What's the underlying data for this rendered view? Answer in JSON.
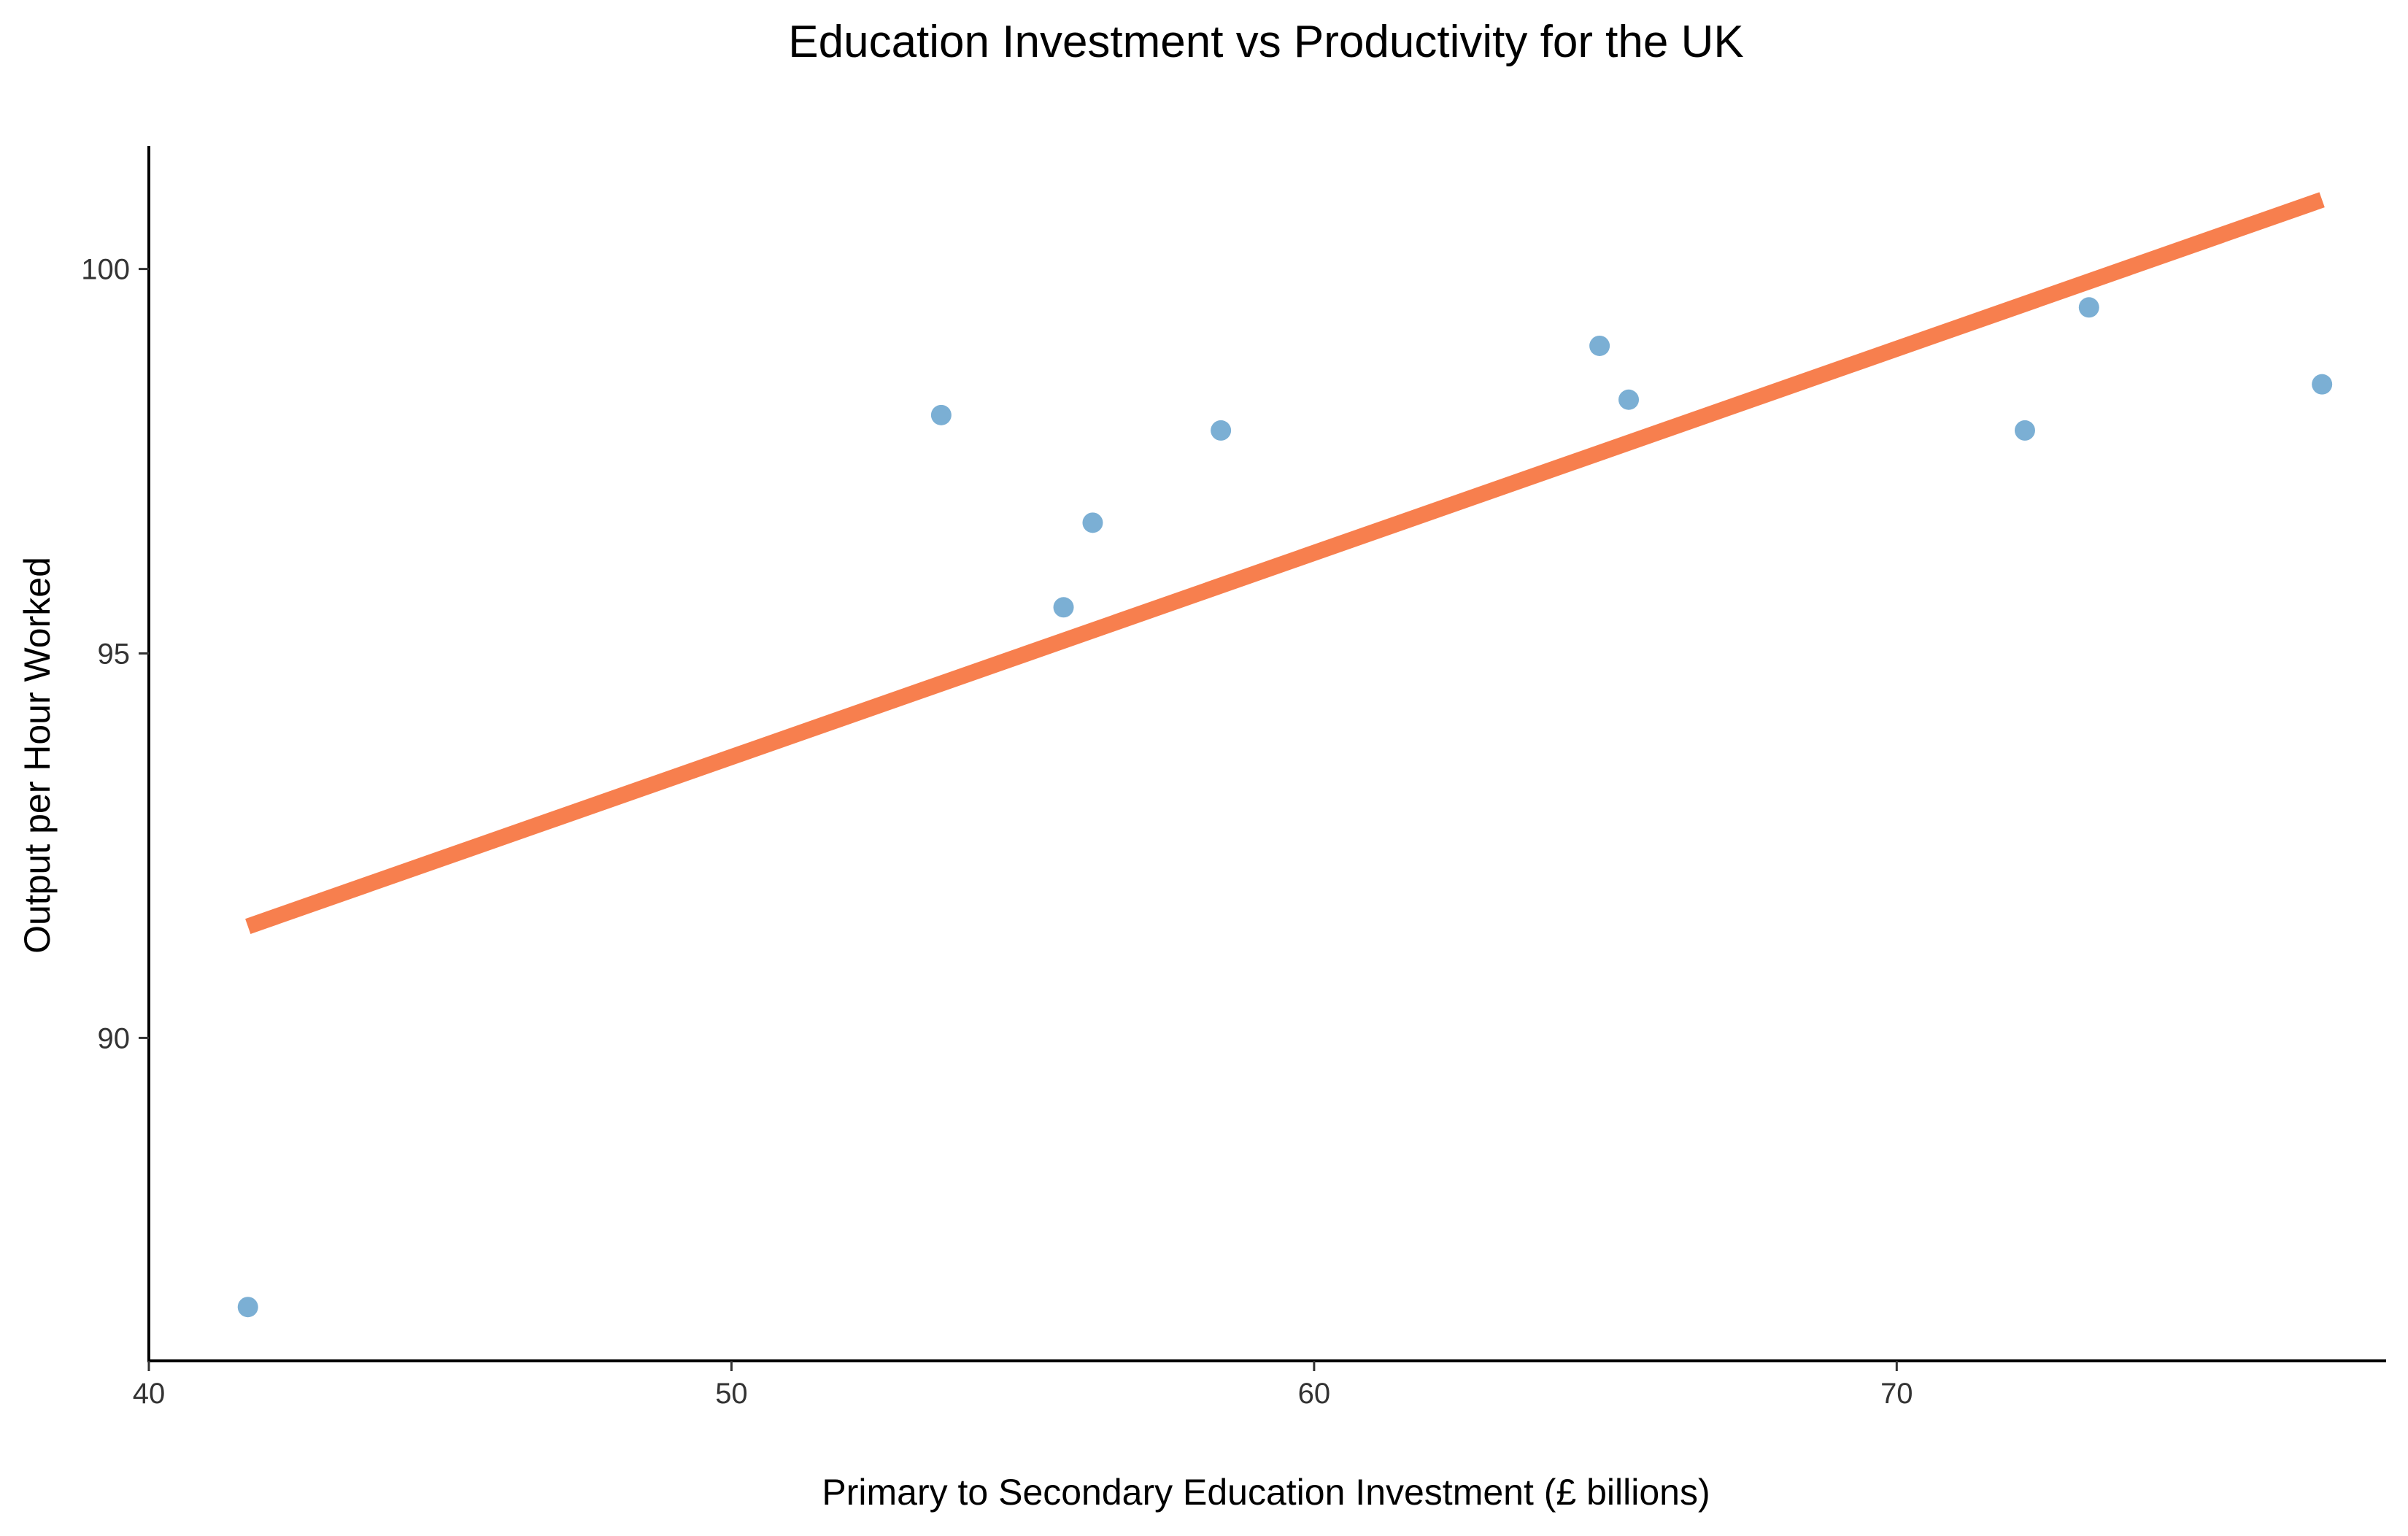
{
  "chart_data": {
    "type": "scatter",
    "title": "Education Investment vs Productivity for the UK",
    "xlabel": "Primary to Secondary Education Investment (£ billions)",
    "ylabel": "Output per Hour Worked",
    "xlim": [
      40,
      78.4
    ],
    "ylim": [
      85.8,
      101.6
    ],
    "xticks": [
      40,
      50,
      60,
      70
    ],
    "yticks": [
      90,
      95,
      100
    ],
    "grid": false,
    "legend": "none",
    "colors": {
      "points": "#7BAFD4",
      "trend": "#F77F4E",
      "axis": "#000000",
      "ticks": "#333333"
    },
    "series": [
      {
        "values": [
          {
            "x": 41.7,
            "y": 86.5
          },
          {
            "x": 53.6,
            "y": 98.1
          },
          {
            "x": 55.7,
            "y": 95.6
          },
          {
            "x": 56.2,
            "y": 96.7
          },
          {
            "x": 58.4,
            "y": 97.9
          },
          {
            "x": 64.9,
            "y": 99.0
          },
          {
            "x": 65.4,
            "y": 98.3
          },
          {
            "x": 72.2,
            "y": 97.9
          },
          {
            "x": 73.3,
            "y": 99.5
          },
          {
            "x": 77.3,
            "y": 98.5
          }
        ]
      }
    ],
    "trend_line": {
      "type": "linear",
      "x": [
        41.7,
        77.3
      ],
      "y": [
        91.45,
        100.9
      ]
    }
  }
}
